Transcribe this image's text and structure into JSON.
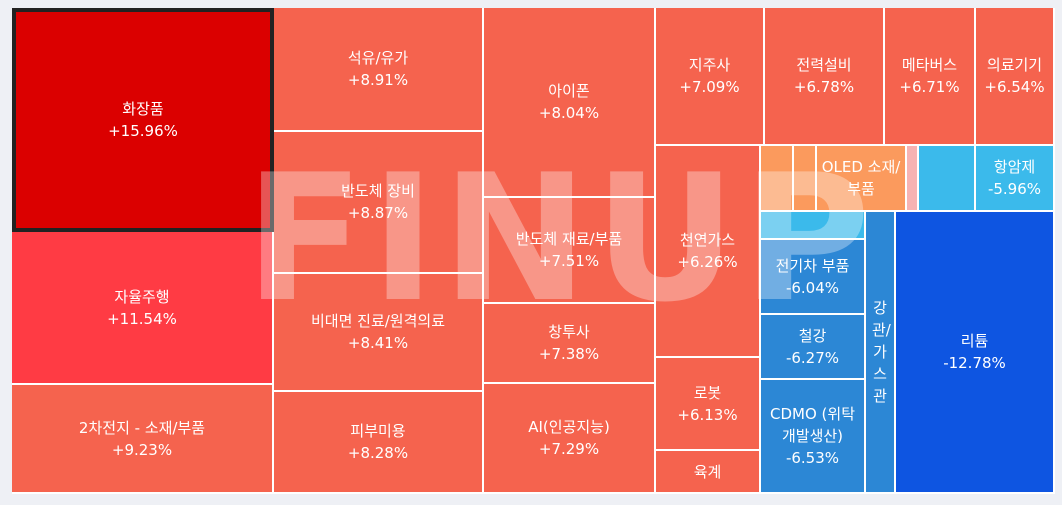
{
  "watermark": "FINUP",
  "chart_data": {
    "type": "treemap",
    "unit": "%",
    "tiles": [
      {
        "name": "화장품",
        "value": "+15.96%",
        "color": "#db0000",
        "selected": true
      },
      {
        "name": "자율주행",
        "value": "+11.54%",
        "color": "#ff3b44"
      },
      {
        "name": "2차전지 - 소재/부품",
        "value": "+9.23%",
        "color": "#f5634e"
      },
      {
        "name": "석유/유가",
        "value": "+8.91%",
        "color": "#f5634e"
      },
      {
        "name": "반도체 장비",
        "value": "+8.87%",
        "color": "#f5634e"
      },
      {
        "name": "비대면 진료/원격의료",
        "value": "+8.41%",
        "color": "#f5634e"
      },
      {
        "name": "피부미용",
        "value": "+8.28%",
        "color": "#f5634e"
      },
      {
        "name": "아이폰",
        "value": "+8.04%",
        "color": "#f5634e"
      },
      {
        "name": "반도체 재료/부품",
        "value": "+7.51%",
        "color": "#f5634e"
      },
      {
        "name": "창투사",
        "value": "+7.38%",
        "color": "#f5634e"
      },
      {
        "name": "AI(인공지능)",
        "value": "+7.29%",
        "color": "#f5634e"
      },
      {
        "name": "지주사",
        "value": "+7.09%",
        "color": "#f5634e"
      },
      {
        "name": "천연가스",
        "value": "+6.26%",
        "color": "#f5634e"
      },
      {
        "name": "로봇",
        "value": "+6.13%",
        "color": "#f5634e"
      },
      {
        "name": "육계",
        "value": "",
        "color": "#f5634e"
      },
      {
        "name": "전력설비",
        "value": "+6.78%",
        "color": "#f5634e"
      },
      {
        "name": "메타버스",
        "value": "+6.71%",
        "color": "#f5634e"
      },
      {
        "name": "의료기기",
        "value": "+6.54%",
        "color": "#f5634e"
      },
      {
        "name": "",
        "value": "",
        "color": "#fb9a5d"
      },
      {
        "name": "",
        "value": "",
        "color": "#fb9a5d"
      },
      {
        "name": "OLED 소재/부품",
        "value": "",
        "color": "#fb9a5d"
      },
      {
        "name": "",
        "value": "",
        "color": "#f6b3b3"
      },
      {
        "name": "",
        "value": "",
        "color": "#3bbaeb"
      },
      {
        "name": "항암제",
        "value": "-5.96%",
        "color": "#3bbaeb"
      },
      {
        "name": "",
        "value": "",
        "color": "#3bbaeb"
      },
      {
        "name": "전기차 부품",
        "value": "-6.04%",
        "color": "#2c87d5"
      },
      {
        "name": "철강",
        "value": "-6.27%",
        "color": "#2c87d5"
      },
      {
        "name": "CDMO (위탁개발생산)",
        "value": "-6.53%",
        "color": "#2c87d5"
      },
      {
        "name": "강관/가스관",
        "value": "",
        "color": "#2c87d5",
        "vertical": true
      },
      {
        "name": "리튬",
        "value": "-12.78%",
        "color": "#0e55e1"
      }
    ]
  }
}
